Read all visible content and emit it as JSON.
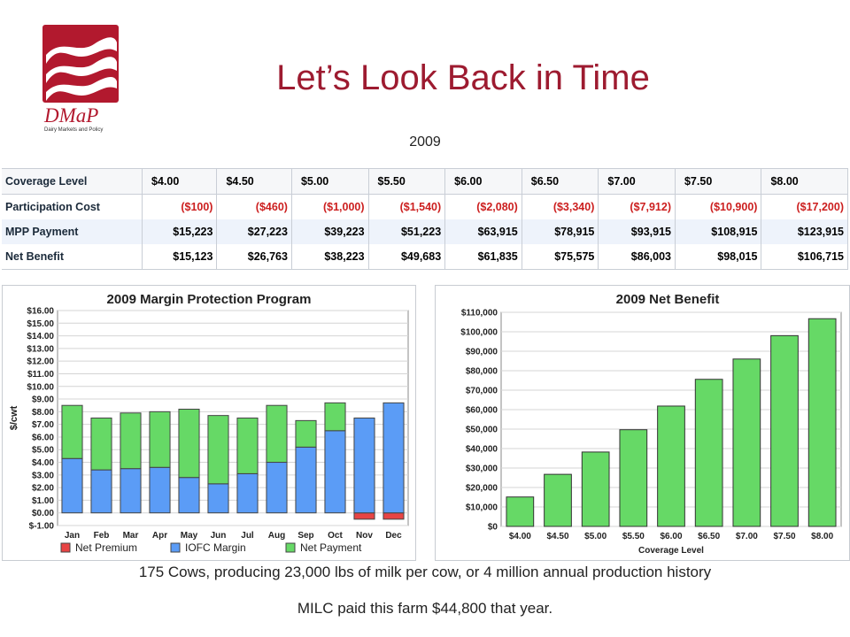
{
  "logo": {
    "name": "DMaP",
    "subtitle": "Dairy Markets and Policy",
    "color": "#b2192e"
  },
  "title": "Let’s Look Back in Time",
  "year": "2009",
  "table": {
    "header": [
      "Coverage Level",
      "$4.00",
      "$4.50",
      "$5.00",
      "$5.50",
      "$6.00",
      "$6.50",
      "$7.00",
      "$7.50",
      "$8.00"
    ],
    "rows": [
      {
        "label": "Participation Cost",
        "values": [
          "($100)",
          "($460)",
          "($1,000)",
          "($1,540)",
          "($2,080)",
          "($3,340)",
          "($7,912)",
          "($10,900)",
          "($17,200)"
        ]
      },
      {
        "label": "MPP Payment",
        "values": [
          "$15,223",
          "$27,223",
          "$39,223",
          "$51,223",
          "$63,915",
          "$78,915",
          "$93,915",
          "$108,915",
          "$123,915"
        ]
      },
      {
        "label": "Net Benefit",
        "values": [
          "$15,123",
          "$26,763",
          "$38,223",
          "$49,683",
          "$61,835",
          "$75,575",
          "$86,003",
          "$98,015",
          "$106,715"
        ]
      }
    ]
  },
  "chart_data": [
    {
      "type": "bar",
      "stacked": true,
      "title": "2009 Margin Protection Program",
      "ylabel": "$/cwt",
      "xlabel": "",
      "ylim": [
        -1,
        16
      ],
      "yticks": [
        "$-1.00",
        "$0.00",
        "$1.00",
        "$2.00",
        "$3.00",
        "$4.00",
        "$5.00",
        "$6.00",
        "$7.00",
        "$8.00",
        "$9.00",
        "$10.00",
        "$11.00",
        "$12.00",
        "$13.00",
        "$14.00",
        "$15.00",
        "$16.00"
      ],
      "categories": [
        "Jan",
        "Feb",
        "Mar",
        "Apr",
        "May",
        "Jun",
        "Jul",
        "Aug",
        "Sep",
        "Oct",
        "Nov",
        "Dec"
      ],
      "series": [
        {
          "name": "Net Premium",
          "color": "#e84444",
          "values": [
            0,
            0,
            0,
            0,
            0,
            0,
            0,
            0,
            0,
            0,
            -0.5,
            -0.5
          ]
        },
        {
          "name": "IOFC Margin",
          "color": "#5b9cf6",
          "values": [
            4.3,
            3.4,
            3.5,
            3.6,
            2.8,
            2.3,
            3.1,
            4.0,
            5.2,
            6.5,
            7.5,
            8.7
          ]
        },
        {
          "name": "Net Payment",
          "color": "#66d966",
          "values": [
            4.2,
            4.1,
            4.4,
            4.4,
            5.4,
            5.4,
            4.4,
            4.5,
            2.1,
            2.2,
            0,
            0
          ]
        }
      ],
      "grid": true,
      "legend": "bottom"
    },
    {
      "type": "bar",
      "title": "2009 Net Benefit",
      "xlabel": "Coverage Level",
      "ylabel": "",
      "ylim": [
        0,
        110000
      ],
      "yticks": [
        "$0",
        "$10,000",
        "$20,000",
        "$30,000",
        "$40,000",
        "$50,000",
        "$60,000",
        "$70,000",
        "$80,000",
        "$90,000",
        "$100,000",
        "$110,000"
      ],
      "categories": [
        "$4.00",
        "$4.50",
        "$5.00",
        "$5.50",
        "$6.00",
        "$6.50",
        "$7.00",
        "$7.50",
        "$8.00"
      ],
      "values": [
        15123,
        26763,
        38223,
        49683,
        61835,
        75575,
        86003,
        98015,
        106715
      ],
      "color": "#66d966",
      "grid": true
    }
  ],
  "caption1": "175 Cows, producing 23,000 lbs of milk per cow, or 4 million annual production history",
  "caption2": "MILC paid this farm $44,800 that year."
}
